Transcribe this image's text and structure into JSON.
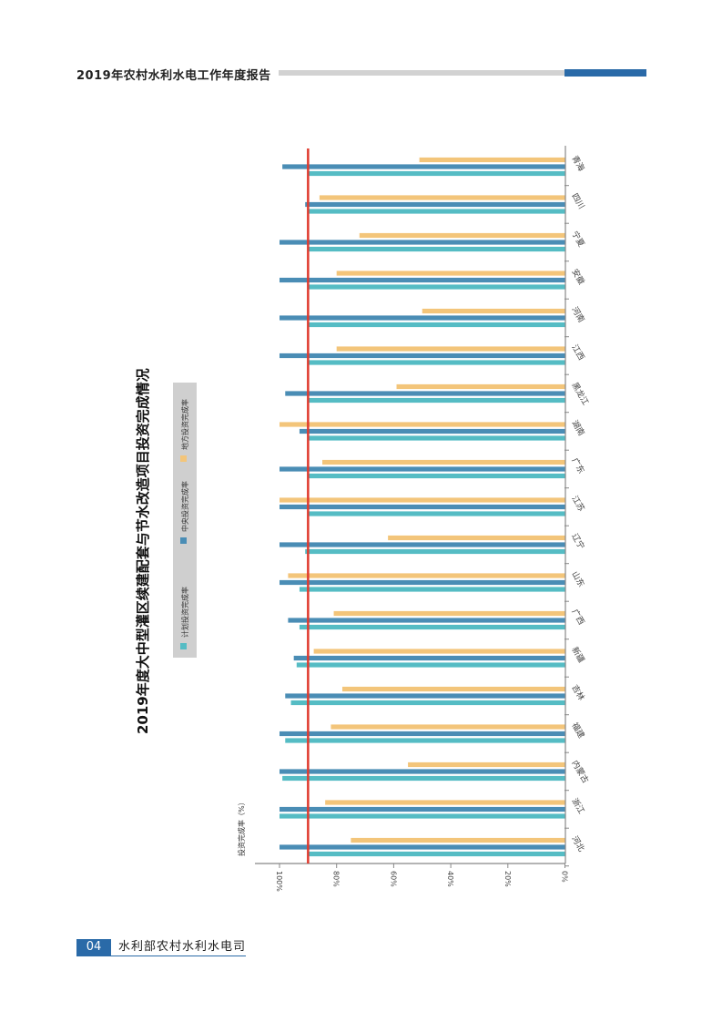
{
  "header": {
    "title": "2019年农村水利水电工作年度报告"
  },
  "footer": {
    "page_number": "04",
    "department": "水利部农村水利水电司"
  },
  "colors": {
    "plan": "#55bcc4",
    "central": "#4a8db5",
    "local": "#f3c57a",
    "reference": "#e03a2e"
  },
  "chart_data": {
    "type": "bar",
    "orientation": "rotated page (categories along vertical axis)",
    "title": "2019年度大中型灌区续建配套与节水改造项目投资完成情况",
    "ylabel": "投资完成率（%）",
    "ylim": [
      0,
      100
    ],
    "yticks": [
      "0%",
      "20%",
      "40%",
      "60%",
      "80%",
      "100%"
    ],
    "reference_line": 90,
    "legend": [
      "计划投资完成率",
      "中央投资完成率",
      "地方投资完成率"
    ],
    "categories": [
      "河北",
      "浙江",
      "内蒙古",
      "福建",
      "吉林",
      "新疆",
      "广西",
      "山东",
      "辽宁",
      "江苏",
      "广东",
      "湖南",
      "黑龙江",
      "江西",
      "河南",
      "安徽",
      "宁夏",
      "四川",
      "青海"
    ],
    "series": [
      {
        "name": "计划投资完成率",
        "values": [
          90,
          100,
          99,
          98,
          96,
          94,
          93,
          93,
          91,
          90,
          90,
          90,
          90,
          90,
          90,
          90,
          90,
          90,
          90
        ]
      },
      {
        "name": "中央投资完成率",
        "values": [
          100,
          100,
          100,
          100,
          98,
          95,
          97,
          100,
          100,
          100,
          100,
          93,
          98,
          100,
          100,
          100,
          100,
          91,
          99
        ]
      },
      {
        "name": "地方投资完成率",
        "values": [
          75,
          84,
          55,
          82,
          78,
          88,
          81,
          97,
          62,
          100,
          85,
          100,
          59,
          80,
          50,
          80,
          72,
          86,
          51
        ]
      }
    ]
  }
}
